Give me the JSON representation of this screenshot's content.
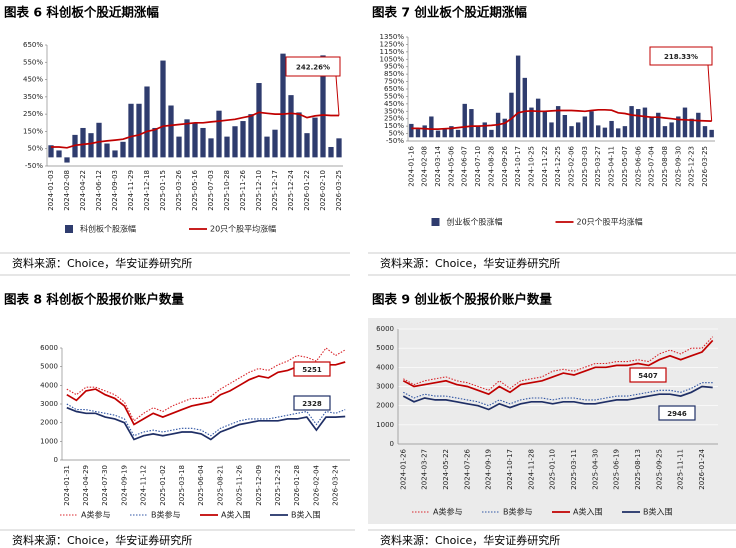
{
  "chart_data": [
    {
      "type": "bar",
      "title": "图表 6 科创板个股近期涨幅",
      "source": "资料来源：Choice，华安证券研究所",
      "annotation": "242.26%",
      "categories": [
        "2024-01-03",
        null,
        "2024-02-08",
        null,
        "2024-04-22",
        null,
        "2024-06-12",
        null,
        "2024-09-03",
        null,
        "2024-11-29",
        null,
        "2024-12-18",
        null,
        "2025-01-15",
        null,
        "2025-03-26",
        null,
        "2025-05-16",
        null,
        "2025-07-03",
        null,
        "2025-10-28",
        null,
        "2025-11-26",
        null,
        "2025-12-10",
        null,
        "2025-12-17",
        null,
        "2025-12-24",
        null,
        "2026-01-22",
        null,
        "2026-02-10",
        null,
        "2026-03-25"
      ],
      "series": [
        {
          "name": "科创板个股涨幅",
          "type": "bar",
          "color": "#2f3c6e",
          "values": [
            70,
            40,
            -30,
            130,
            170,
            140,
            200,
            80,
            40,
            90,
            310,
            310,
            410,
            170,
            560,
            300,
            120,
            220,
            200,
            170,
            110,
            270,
            120,
            180,
            210,
            250,
            430,
            120,
            160,
            600,
            360,
            260,
            140,
            230,
            590,
            60,
            110
          ]
        },
        {
          "name": "20只个股平均涨幅",
          "type": "line",
          "color": "#c00000",
          "values": [
            60,
            60,
            55,
            70,
            75,
            80,
            90,
            95,
            100,
            105,
            120,
            130,
            150,
            160,
            180,
            185,
            190,
            195,
            200,
            200,
            205,
            210,
            215,
            220,
            230,
            240,
            260,
            255,
            250,
            250,
            255,
            250,
            230,
            240,
            245,
            242,
            242.26
          ]
        }
      ],
      "ylim": [
        -50,
        650
      ],
      "yticks": [
        {
          "value": -50,
          "label": "-50%"
        },
        {
          "value": 50,
          "label": "50%"
        },
        {
          "value": 150,
          "label": "150%"
        },
        {
          "value": 250,
          "label": "250%"
        },
        {
          "value": 350,
          "label": "350%"
        },
        {
          "value": 450,
          "label": "450%"
        },
        {
          "value": 550,
          "label": "550%"
        },
        {
          "value": 650,
          "label": "650%"
        }
      ],
      "grid": false
    },
    {
      "type": "bar",
      "title": "图表 7 创业板个股近期涨幅",
      "source": "资料来源：Choice，华安证券研究所",
      "annotation": "218.33%",
      "categories": [
        "2024-01-16",
        null,
        "2024-02-08",
        null,
        "2024-03-14",
        null,
        "2024-05-06",
        null,
        "2024-06-07",
        null,
        "2024-07-10",
        null,
        "2024-08-28",
        null,
        "2024-09-26",
        null,
        "2024-10-17",
        null,
        "2024-10-25",
        null,
        "2024-11-22",
        null,
        "2024-12-25",
        null,
        "2025-02-06",
        null,
        "2025-03-03",
        null,
        "2025-03-27",
        null,
        "2025-04-11",
        null,
        "2025-05-07",
        null,
        "2025-06-06",
        null,
        "2025-07-04",
        null,
        "2025-08-08",
        null,
        "2025-09-30",
        null,
        "2025-12-23",
        null,
        "2026-03-25",
        null
      ],
      "series": [
        {
          "name": "创业板个股涨幅",
          "type": "bar",
          "color": "#2f3c6e",
          "values": [
            180,
            110,
            160,
            280,
            90,
            120,
            150,
            100,
            450,
            380,
            150,
            200,
            100,
            330,
            250,
            600,
            1100,
            800,
            400,
            520,
            350,
            200,
            420,
            300,
            150,
            200,
            280,
            350,
            160,
            130,
            220,
            120,
            150,
            420,
            380,
            400,
            280,
            330,
            150,
            200,
            280,
            400,
            250,
            330,
            150,
            100
          ]
        },
        {
          "name": "20只个股平均涨幅",
          "type": "line",
          "color": "#c00000",
          "values": [
            120,
            120,
            115,
            110,
            110,
            115,
            120,
            130,
            140,
            150,
            150,
            155,
            160,
            170,
            190,
            250,
            330,
            350,
            355,
            350,
            350,
            355,
            360,
            360,
            360,
            355,
            350,
            360,
            370,
            370,
            365,
            330,
            320,
            300,
            290,
            280,
            270,
            270,
            260,
            250,
            240,
            235,
            230,
            225,
            220,
            218.33
          ]
        }
      ],
      "ylim": [
        -50,
        1350
      ],
      "yticks": [
        {
          "value": -50,
          "label": "-50%"
        },
        {
          "value": 50,
          "label": "50%"
        },
        {
          "value": 150,
          "label": "150%"
        },
        {
          "value": 250,
          "label": "250%"
        },
        {
          "value": 350,
          "label": "350%"
        },
        {
          "value": 450,
          "label": "450%"
        },
        {
          "value": 550,
          "label": "550%"
        },
        {
          "value": 650,
          "label": "650%"
        },
        {
          "value": 750,
          "label": "750%"
        },
        {
          "value": 850,
          "label": "850%"
        },
        {
          "value": 950,
          "label": "950%"
        },
        {
          "value": 1050,
          "label": "1050%"
        },
        {
          "value": 1150,
          "label": "1150%"
        },
        {
          "value": 1250,
          "label": "1250%"
        },
        {
          "value": 1350,
          "label": "1350%"
        }
      ],
      "grid": false
    },
    {
      "type": "line",
      "title": "图表 8 科创板个股报价账户数量",
      "source": "资料来源：Choice，华安证券研究所",
      "categories": [
        "2024-01-31",
        null,
        "2024-04-29",
        null,
        "2024-07-30",
        null,
        "2024-09-19",
        null,
        "2024-11-12",
        null,
        "2025-01-02",
        null,
        "2025-03-18",
        null,
        "2025-06-04",
        null,
        "2025-08-21",
        null,
        "2025-11-26",
        null,
        "2025-12-09",
        null,
        "2025-12-23",
        null,
        "2026-01-28",
        null,
        "2026-02-04",
        null,
        "2026-03-24",
        null
      ],
      "series": [
        {
          "name": "A类参与",
          "style": "dotted",
          "color": "#d9262c",
          "values": [
            3800,
            3500,
            3900,
            3900,
            3700,
            3500,
            3100,
            2100,
            2500,
            2800,
            2600,
            2900,
            3100,
            3300,
            3300,
            3400,
            3800,
            4100,
            4400,
            4700,
            4900,
            4800,
            5100,
            5300,
            5600,
            5500,
            5300,
            6000,
            5600,
            5900
          ]
        },
        {
          "name": "B类参与",
          "style": "dotted",
          "color": "#2f55a4",
          "values": [
            3000,
            2700,
            2700,
            2600,
            2500,
            2400,
            2200,
            1300,
            1500,
            1600,
            1500,
            1600,
            1700,
            1700,
            1600,
            1300,
            1700,
            1900,
            2100,
            2200,
            2200,
            2200,
            2300,
            2400,
            2500,
            2600,
            1900,
            2600,
            2500,
            2700
          ]
        },
        {
          "name": "A类入围",
          "style": "solid",
          "color": "#c00000",
          "values": [
            3500,
            3200,
            3700,
            3800,
            3500,
            3300,
            2900,
            1900,
            2200,
            2500,
            2300,
            2500,
            2700,
            2900,
            3000,
            3100,
            3500,
            3700,
            4000,
            4300,
            4500,
            4400,
            4700,
            4800,
            5000,
            5000,
            4900,
            5100,
            5100,
            5251
          ]
        },
        {
          "name": "B类入围",
          "style": "solid",
          "color": "#1f2f66",
          "values": [
            2800,
            2600,
            2500,
            2500,
            2300,
            2200,
            2000,
            1100,
            1300,
            1400,
            1300,
            1400,
            1500,
            1500,
            1400,
            1100,
            1500,
            1700,
            1900,
            2000,
            2100,
            2100,
            2100,
            2200,
            2200,
            2300,
            1600,
            2300,
            2300,
            2328
          ]
        }
      ],
      "ylim": [
        0,
        6000
      ],
      "yticks": [
        0,
        1000,
        2000,
        3000,
        4000,
        5000,
        6000
      ],
      "grid": false
    },
    {
      "type": "line",
      "title": "图表 9 创业板个股报价账户数量",
      "source": "资料来源：Choice，华安证券研究所",
      "background": "#ebebeb",
      "categories": [
        "2024-01-26",
        null,
        "2024-03-27",
        null,
        "2024-05-22",
        null,
        "2024-07-26",
        null,
        "2024-09-19",
        null,
        "2024-10-17",
        null,
        "2024-11-28",
        null,
        "2025-01-10",
        null,
        "2025-03-11",
        null,
        "2025-04-30",
        null,
        "2025-06-19",
        null,
        "2025-08-13",
        null,
        "2025-09-25",
        null,
        "2025-11-11",
        null,
        "2026-01-24",
        null
      ],
      "series": [
        {
          "name": "A类参与",
          "style": "dotted",
          "color": "#d9262c",
          "values": [
            3400,
            3100,
            3300,
            3400,
            3500,
            3300,
            3200,
            3000,
            2800,
            3300,
            2900,
            3300,
            3400,
            3500,
            3800,
            3900,
            3800,
            4000,
            4200,
            4200,
            4300,
            4300,
            4400,
            4300,
            4700,
            4900,
            4700,
            5000,
            5000,
            5600
          ]
        },
        {
          "name": "B类参与",
          "style": "dotted",
          "color": "#2f55a4",
          "values": [
            2700,
            2400,
            2600,
            2500,
            2500,
            2400,
            2300,
            2200,
            2000,
            2300,
            2100,
            2300,
            2400,
            2400,
            2300,
            2400,
            2400,
            2300,
            2300,
            2400,
            2500,
            2500,
            2600,
            2700,
            2800,
            2800,
            2700,
            2900,
            3200,
            3200
          ]
        },
        {
          "name": "A类入围",
          "style": "solid",
          "color": "#c00000",
          "values": [
            3300,
            3000,
            3100,
            3200,
            3300,
            3100,
            3000,
            2800,
            2600,
            3000,
            2700,
            3100,
            3200,
            3300,
            3500,
            3700,
            3600,
            3800,
            4000,
            4000,
            4100,
            4100,
            4200,
            4100,
            4400,
            4600,
            4400,
            4600,
            4800,
            5407
          ]
        },
        {
          "name": "B类入围",
          "style": "solid",
          "color": "#1f2f66",
          "values": [
            2500,
            2200,
            2400,
            2300,
            2300,
            2200,
            2100,
            2000,
            1800,
            2100,
            1900,
            2100,
            2200,
            2200,
            2100,
            2200,
            2200,
            2100,
            2100,
            2200,
            2300,
            2300,
            2400,
            2500,
            2600,
            2600,
            2500,
            2700,
            3000,
            2946
          ]
        }
      ],
      "ylim": [
        0,
        6000
      ],
      "yticks": [
        0,
        1000,
        2000,
        3000,
        4000,
        5000,
        6000
      ],
      "grid": true
    }
  ]
}
